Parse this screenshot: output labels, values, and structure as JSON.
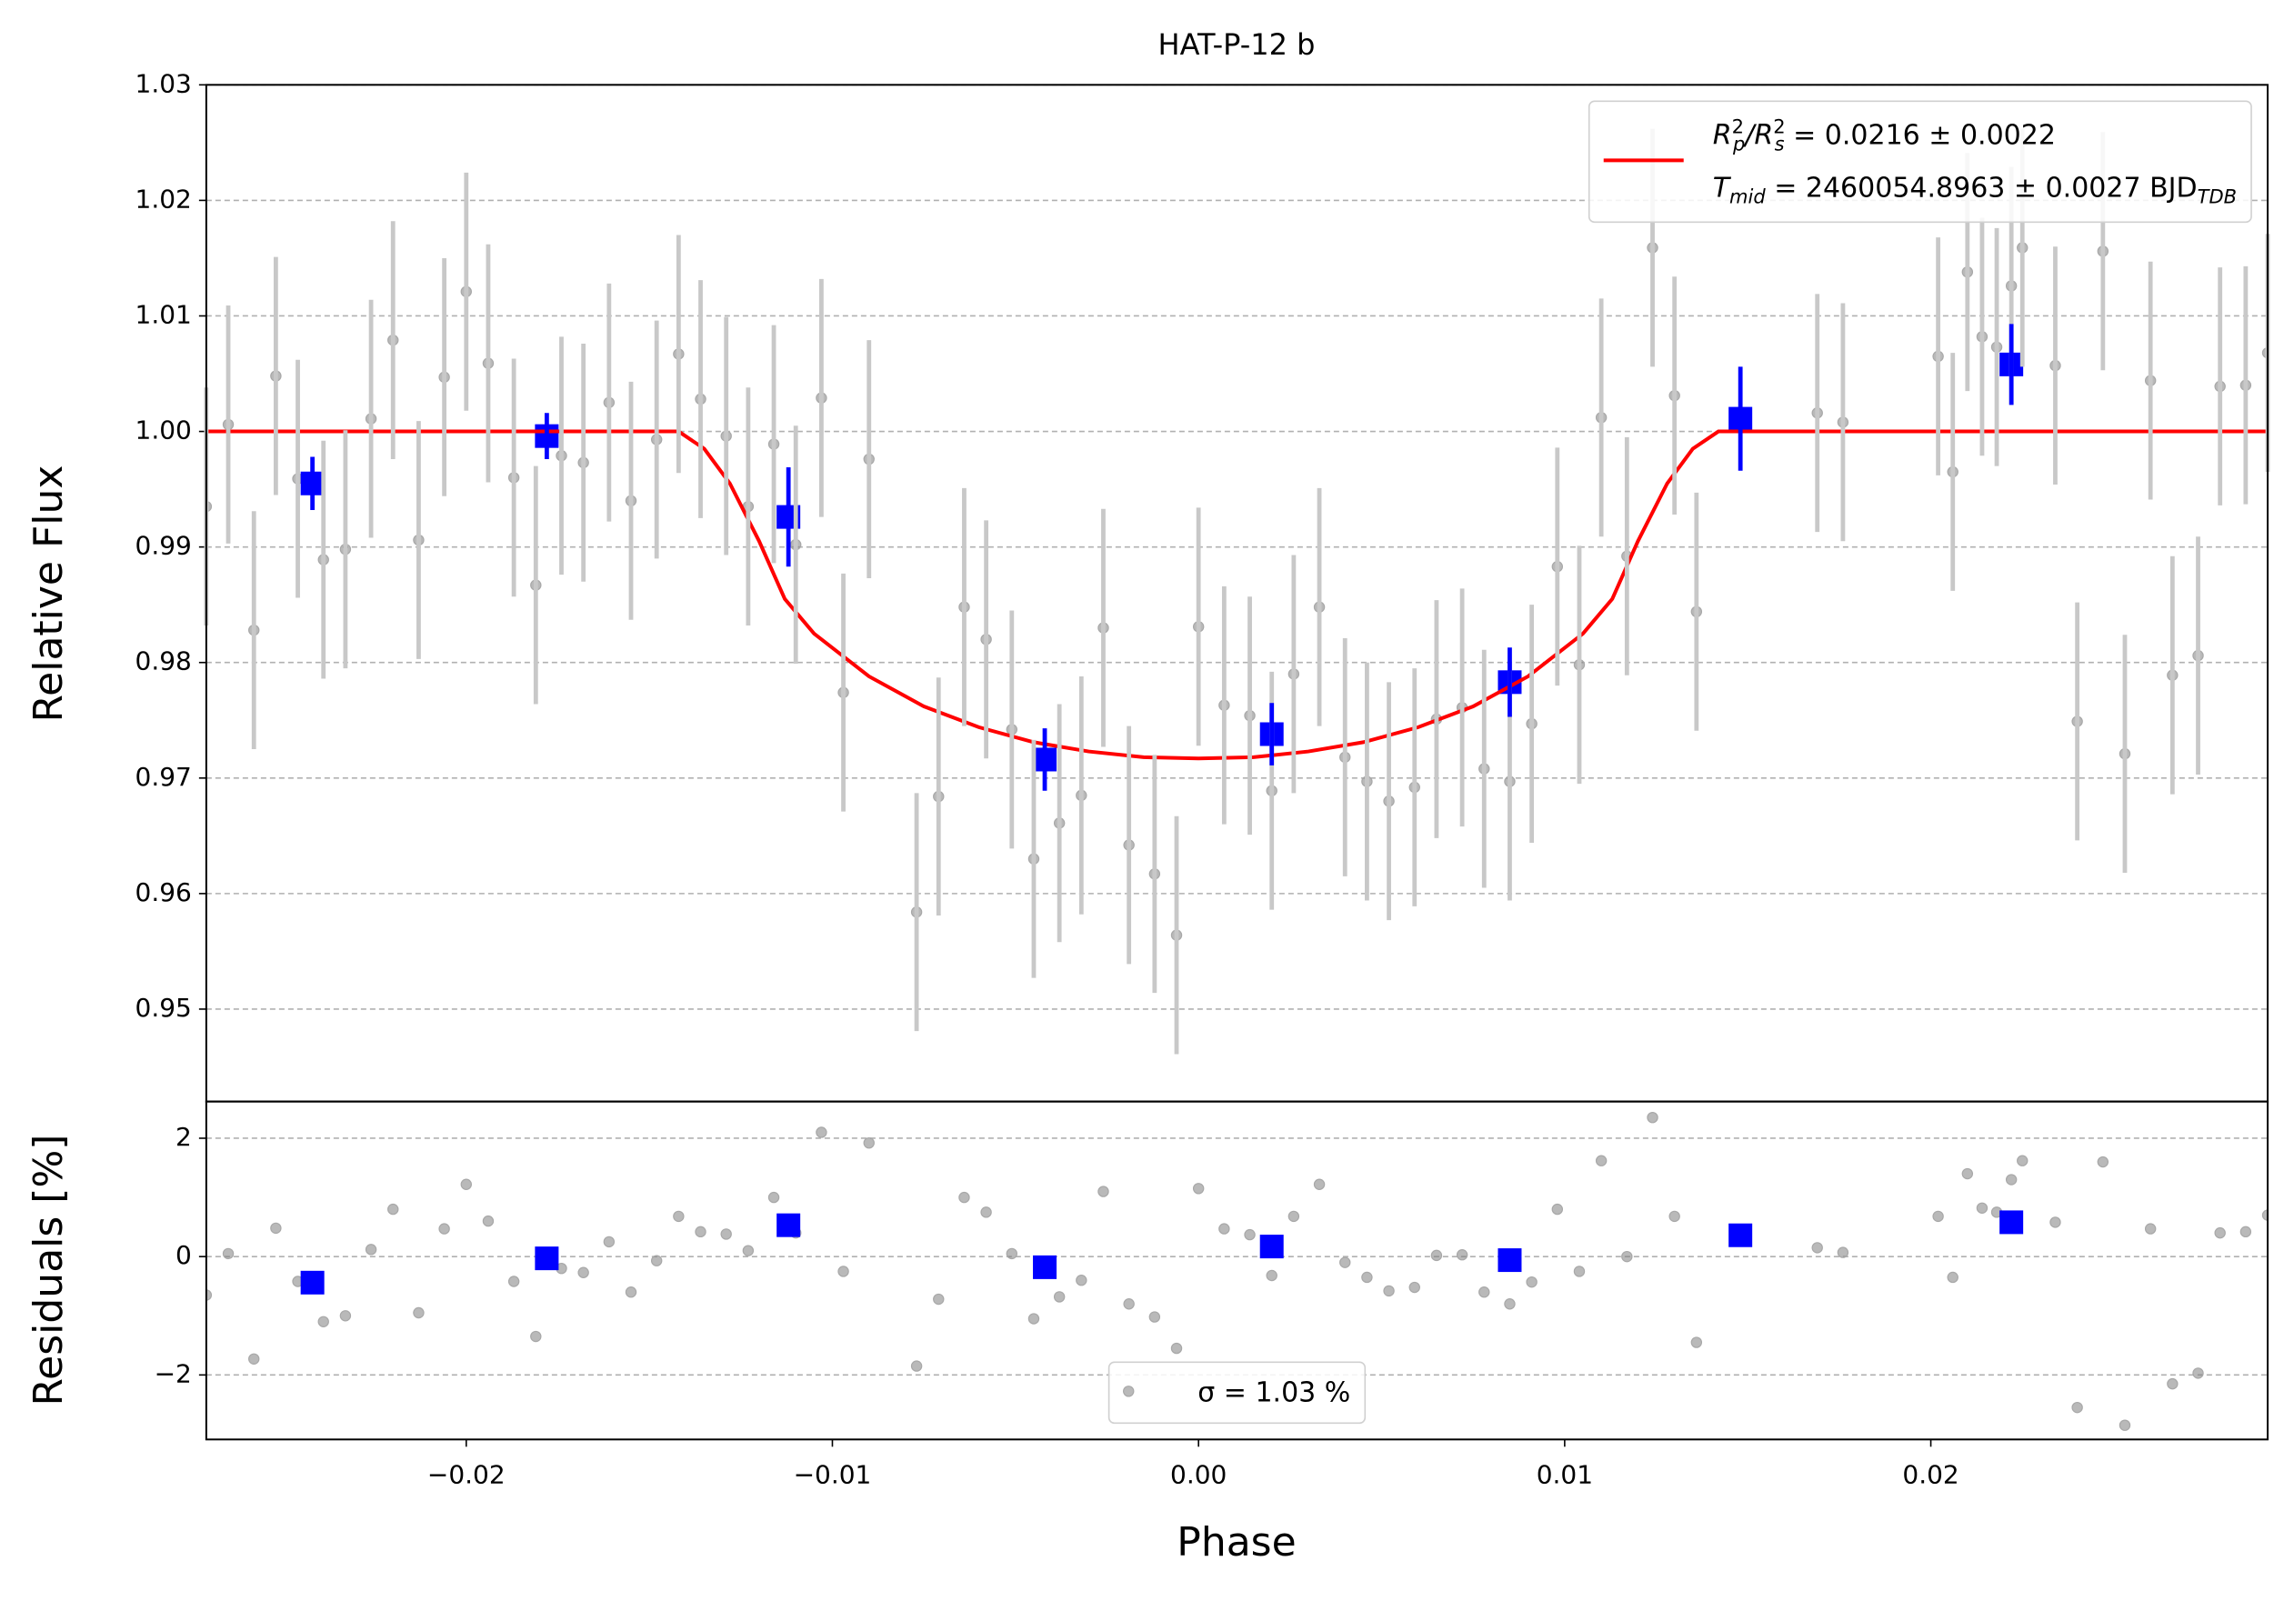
{
  "chart_data": [
    {
      "type": "scatter",
      "title": "HAT-P-12 b",
      "ylabel": "Relative Flux",
      "xlim": [
        -0.0271,
        0.0292
      ],
      "ylim": [
        0.942,
        1.03
      ],
      "yticks": [
        0.95,
        0.96,
        0.97,
        0.98,
        0.99,
        {
          "value": 1.0,
          "label": "1.00"
        },
        1.01,
        1.02,
        1.03
      ],
      "grid": true,
      "legend": "upper right",
      "series": [
        {
          "color": "#808080",
          "marker": "o",
          "x": [
            -0.0271,
            -0.0265,
            -0.0258,
            -0.0252,
            -0.0246,
            -0.0239,
            -0.0233,
            -0.0226,
            -0.022,
            -0.0213,
            -0.0206,
            -0.02,
            -0.0194,
            -0.0187,
            -0.0181,
            -0.0174,
            -0.0168,
            -0.0161,
            -0.0155,
            -0.0148,
            -0.0142,
            -0.0136,
            -0.0129,
            -0.0123,
            -0.0116,
            -0.011,
            -0.0103,
            -0.0097,
            -0.009,
            -0.0077,
            -0.0071,
            -0.0064,
            -0.0058,
            -0.0051,
            -0.0045,
            -0.0038,
            -0.0032,
            -0.0026,
            -0.0019,
            -0.0012,
            -0.0006,
            0.0,
            0.0007,
            0.0014,
            0.002,
            0.0026,
            0.0033,
            0.004,
            0.0046,
            0.0052,
            0.0059,
            0.0065,
            0.0072,
            0.0078,
            0.0085,
            0.0091,
            0.0098,
            0.0104,
            0.011,
            0.0117,
            0.0124,
            0.013,
            0.0136,
            0.0169,
            0.0176,
            0.0202,
            0.0206,
            0.021,
            0.0214,
            0.0218,
            0.0222,
            0.0225,
            0.0234,
            0.024,
            0.0247,
            0.0253,
            0.026,
            0.0266,
            0.0273,
            0.0279,
            0.0286,
            0.0292
          ],
          "values": [
            0.9935,
            1.0006,
            0.9828,
            1.0048,
            0.9959,
            0.9889,
            0.9898,
            1.0011,
            1.0079,
            0.9906,
            1.0047,
            1.0121,
            1.0059,
            0.996,
            0.9867,
            0.9979,
            0.9973,
            1.0025,
            0.994,
            0.9993,
            1.0067,
            1.0028,
            0.9996,
            0.9935,
            0.9989,
            0.9902,
            1.0029,
            0.9774,
            0.9976,
            0.9584,
            0.9684,
            0.9848,
            0.982,
            0.9742,
            0.963,
            0.9661,
            0.9685,
            0.983,
            0.9642,
            0.9617,
            0.9564,
            0.9831,
            0.9763,
            0.9754,
            0.9689,
            0.979,
            0.9848,
            0.9718,
            0.9697,
            0.968,
            0.9692,
            0.9751,
            0.9761,
            0.9708,
            0.9697,
            0.9747,
            0.9883,
            0.9798,
            1.0012,
            0.9892,
            1.0159,
            1.0031,
            0.9844,
            1.0016,
            1.0008,
            1.0065,
            0.9965,
            1.0138,
            1.0082,
            1.0073,
            1.0126,
            1.0159,
            1.0057,
            0.9749,
            1.0156,
            0.9721,
            1.0044,
            0.9789,
            0.9806,
            1.0039,
            1.004,
            1.0068
          ],
          "errors": [
            0.0103,
            0.0103,
            0.0103,
            0.0103,
            0.0103,
            0.0103,
            0.0103,
            0.0103,
            0.0103,
            0.0103,
            0.0103,
            0.0103,
            0.0103,
            0.0103,
            0.0103,
            0.0103,
            0.0103,
            0.0103,
            0.0103,
            0.0103,
            0.0103,
            0.0103,
            0.0103,
            0.0103,
            0.0103,
            0.0103,
            0.0103,
            0.0103,
            0.0103,
            0.0103,
            0.0103,
            0.0103,
            0.0103,
            0.0103,
            0.0103,
            0.0103,
            0.0103,
            0.0103,
            0.0103,
            0.0103,
            0.0103,
            0.0103,
            0.0103,
            0.0103,
            0.0103,
            0.0103,
            0.0103,
            0.0103,
            0.0103,
            0.0103,
            0.0103,
            0.0103,
            0.0103,
            0.0103,
            0.0103,
            0.0103,
            0.0103,
            0.0103,
            0.0103,
            0.0103,
            0.0103,
            0.0103,
            0.0103,
            0.0103,
            0.0103,
            0.0103,
            0.0103,
            0.0103,
            0.0103,
            0.0103,
            0.0103,
            0.0103,
            0.0103,
            0.0103,
            0.0103,
            0.0103,
            0.0103,
            0.0103,
            0.0103,
            0.0103,
            0.0103,
            0.0103
          ]
        },
        {
          "color": "#0000ff",
          "marker": "s",
          "x": [
            -0.0242,
            -0.0178,
            -0.0112,
            -0.0042,
            0.002,
            0.0085,
            0.0148,
            0.0222
          ],
          "values": [
            0.9955,
            0.9996,
            0.9926,
            0.9716,
            0.9738,
            0.9783,
            1.0011,
            1.0058
          ],
          "errors": [
            0.0023,
            0.002,
            0.0043,
            0.0027,
            0.0027,
            0.003,
            0.0045,
            0.0035
          ]
        },
        {
          "color": "#ff0000",
          "linestyle": "-",
          "name": [
            [
              {
                "text": "R"
              },
              {
                "sub": "p",
                "sup": "2"
              },
              {
                "text": "/R"
              },
              {
                "sub": "s",
                "sup": "2"
              },
              {
                "text": " = 0.0216 ± 0.0022"
              }
            ],
            [
              {
                "text": "T"
              },
              {
                "sub": "mid"
              },
              {
                "text": " = 2460054.8963 ± 0.0027 BJD"
              },
              {
                "sub": "TDB"
              }
            ]
          ],
          "x": [
            -0.0271,
            -0.0142,
            -0.0135,
            -0.0128,
            -0.012,
            -0.0113,
            -0.0105,
            -0.009,
            -0.0075,
            -0.006,
            -0.0045,
            -0.003,
            -0.0015,
            0,
            0.0015,
            0.003,
            0.0045,
            0.006,
            0.0075,
            0.009,
            0.0105,
            0.0113,
            0.012,
            0.0128,
            0.0135,
            0.0142,
            0.0292
          ],
          "values": [
            1.0,
            1.0,
            0.9985,
            0.9955,
            0.9905,
            0.9855,
            0.9825,
            0.9788,
            0.9762,
            0.9744,
            0.9731,
            0.9723,
            0.9718,
            0.9717,
            0.9718,
            0.9723,
            0.9731,
            0.9744,
            0.9762,
            0.9788,
            0.9825,
            0.9855,
            0.9905,
            0.9955,
            0.9985,
            1.0,
            1.0
          ]
        }
      ]
    },
    {
      "type": "scatter",
      "ylabel": "Residuals [%]",
      "xlabel": "Phase",
      "xlim": [
        -0.0271,
        0.0292
      ],
      "ylim": [
        -3.09,
        2.62
      ],
      "xticks": [
        {
          "value": -0.02,
          "label": "−0.02"
        },
        {
          "value": -0.01,
          "label": "−0.01"
        },
        {
          "value": 0,
          "label": "0.00"
        },
        {
          "value": 0.01,
          "label": "0.01"
        },
        {
          "value": 0.02,
          "label": "0.02"
        }
      ],
      "yticks": [
        {
          "value": -2,
          "label": "−2"
        },
        0,
        2
      ],
      "grid": true,
      "legend": "lower center",
      "series": [
        {
          "color": "#808080",
          "marker": "o",
          "name": "σ = 1.03 %",
          "x": [
            -0.0271,
            -0.0265,
            -0.0258,
            -0.0252,
            -0.0246,
            -0.0239,
            -0.0233,
            -0.0226,
            -0.022,
            -0.0213,
            -0.0206,
            -0.02,
            -0.0194,
            -0.0187,
            -0.0181,
            -0.0174,
            -0.0168,
            -0.0161,
            -0.0155,
            -0.0148,
            -0.0142,
            -0.0136,
            -0.0129,
            -0.0123,
            -0.0116,
            -0.011,
            -0.0103,
            -0.0097,
            -0.009,
            -0.0077,
            -0.0071,
            -0.0064,
            -0.0058,
            -0.0051,
            -0.0045,
            -0.0038,
            -0.0032,
            -0.0026,
            -0.0019,
            -0.0012,
            -0.0006,
            0.0,
            0.0007,
            0.0014,
            0.002,
            0.0026,
            0.0033,
            0.004,
            0.0046,
            0.0052,
            0.0059,
            0.0065,
            0.0072,
            0.0078,
            0.0085,
            0.0091,
            0.0098,
            0.0104,
            0.011,
            0.0117,
            0.0124,
            0.013,
            0.0136,
            0.0169,
            0.0176,
            0.0202,
            0.0206,
            0.021,
            0.0214,
            0.0218,
            0.0222,
            0.0225,
            0.0234,
            0.024,
            0.0247,
            0.0253,
            0.026,
            0.0266,
            0.0273,
            0.0279,
            0.0286,
            0.0292
          ],
          "values": [
            -0.65,
            0.05,
            -1.73,
            0.48,
            -0.42,
            -1.1,
            -1.0,
            0.12,
            0.8,
            -0.95,
            0.47,
            1.22,
            0.6,
            -0.42,
            -1.35,
            -0.2,
            -0.27,
            0.25,
            -0.6,
            -0.07,
            0.68,
            0.42,
            0.38,
            0.1,
            1.0,
            0.4,
            2.1,
            -0.25,
            1.92,
            -1.85,
            -0.72,
            1.0,
            0.75,
            0.05,
            -1.05,
            -0.68,
            -0.4,
            1.1,
            -0.8,
            -1.02,
            -1.55,
            1.15,
            0.47,
            0.37,
            -0.32,
            0.68,
            1.22,
            -0.1,
            -0.35,
            -0.58,
            -0.52,
            0.02,
            0.03,
            -0.6,
            -0.8,
            -0.43,
            0.8,
            -0.25,
            1.62,
            0.0,
            2.35,
            0.68,
            -1.45,
            0.15,
            0.07,
            0.68,
            -0.35,
            1.4,
            0.82,
            0.75,
            1.3,
            1.62,
            0.58,
            -2.55,
            1.6,
            -2.85,
            0.47,
            -2.15,
            -1.97,
            0.4,
            0.42,
            0.7
          ]
        },
        {
          "color": "#0000ff",
          "marker": "s",
          "x": [
            -0.0242,
            -0.0178,
            -0.0112,
            -0.0042,
            0.002,
            0.0085,
            0.0148,
            0.0222
          ],
          "values": [
            -0.44,
            -0.03,
            0.53,
            -0.18,
            0.17,
            -0.06,
            0.36,
            0.58
          ]
        }
      ]
    }
  ]
}
